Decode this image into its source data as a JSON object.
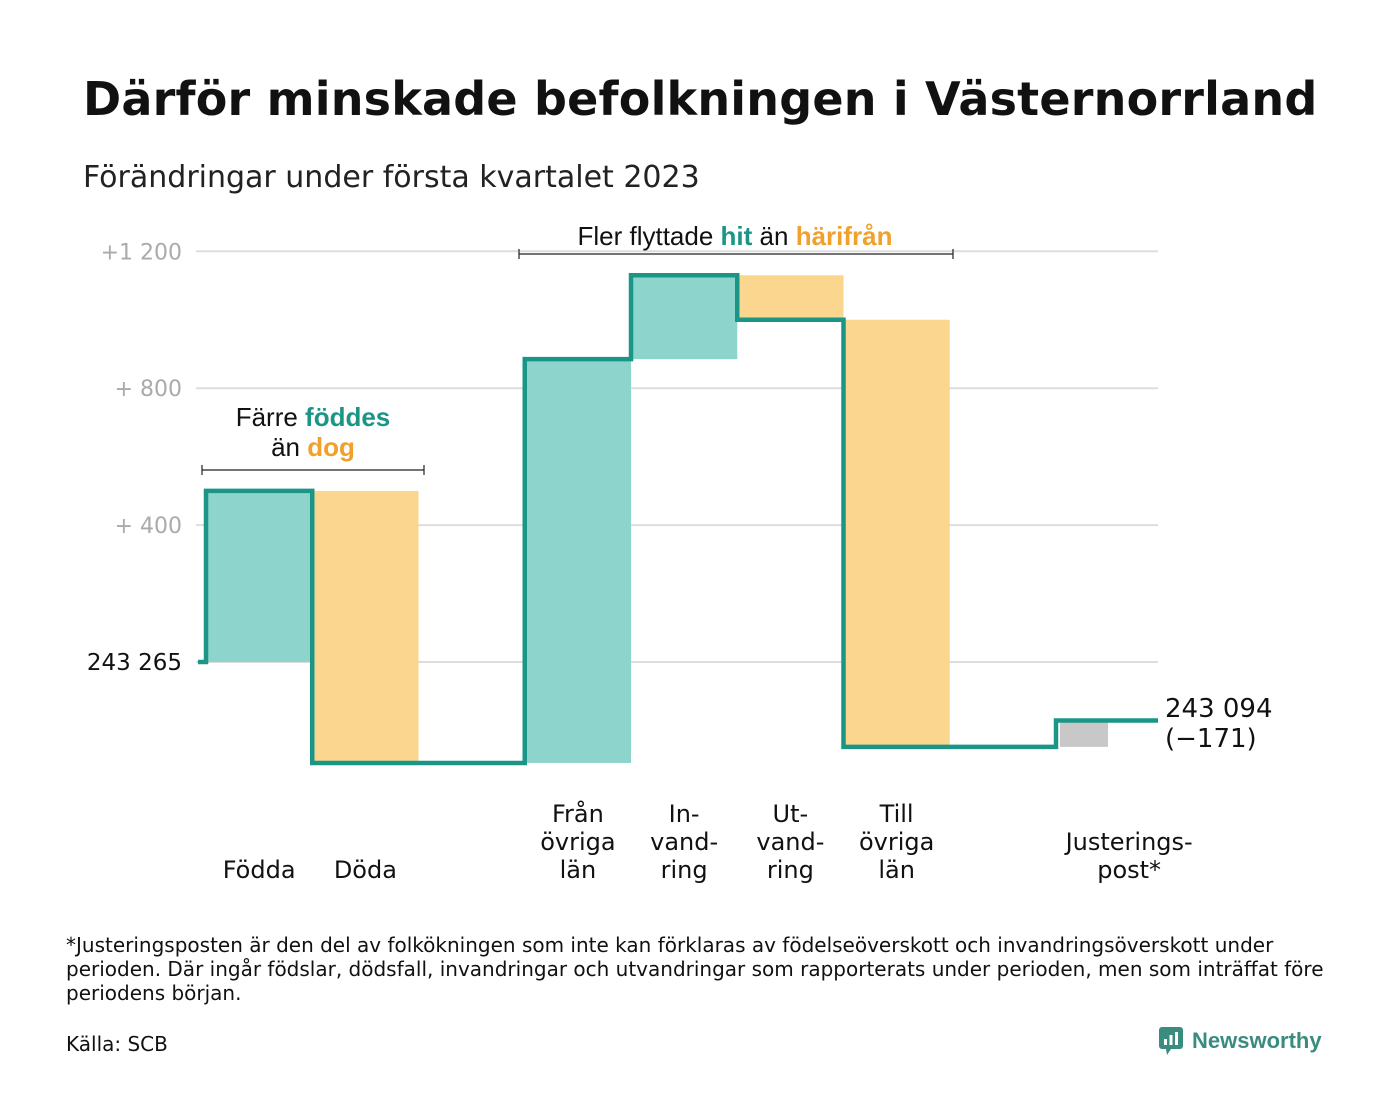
{
  "title": "Därför minskade befolkningen i Västernorrland",
  "subtitle": "Förändringar under första kvartalet 2023",
  "footnote": "*Justeringsposten är den del av folkökningen som inte kan förklaras av födelseöverskott och invandringsöverskott under perioden. Där ingår födslar, dödsfall, invandringar och utvandringar som rapporterats under perioden, men som inträffat före periodens början.",
  "source": "Källa: SCB",
  "brand": "Newsworthy",
  "colors": {
    "inflow": "#8dd5cc",
    "outflow": "#fad68e",
    "adjustment": "#c8c8c8",
    "line": "#1b9585",
    "grid": "#dddddd",
    "tick": "#aaaaaa",
    "accent_teal": "#1b9585",
    "accent_orange": "#f0a12b"
  },
  "chart_data": {
    "type": "waterfall",
    "baseline_label": "243 265",
    "ylim": [
      -300,
      1200
    ],
    "y_ticks": [
      {
        "value": 400,
        "label": "+ 400"
      },
      {
        "value": 800,
        "label": "+ 800"
      },
      {
        "value": 1200,
        "label": "+1 200"
      }
    ],
    "steps": [
      {
        "label": [
          "Födda"
        ],
        "start": 0,
        "end": 500,
        "kind": "inflow"
      },
      {
        "label": [
          "Döda"
        ],
        "start": 500,
        "end": -295,
        "kind": "outflow"
      },
      {
        "label": [],
        "start": -295,
        "end": -295,
        "kind": "gap"
      },
      {
        "label": [
          "Från",
          "övriga",
          "län"
        ],
        "start": -295,
        "end": 885,
        "kind": "inflow"
      },
      {
        "label": [
          "In-",
          "vand-",
          "ring"
        ],
        "start": 885,
        "end": 1130,
        "kind": "inflow"
      },
      {
        "label": [
          "Ut-",
          "vand-",
          "ring"
        ],
        "start": 1130,
        "end": 1000,
        "kind": "outflow"
      },
      {
        "label": [
          "Till",
          "övriga",
          "län"
        ],
        "start": 1000,
        "end": -248,
        "kind": "outflow"
      },
      {
        "label": [],
        "start": -248,
        "end": -248,
        "kind": "gap"
      },
      {
        "label": [
          "Justerings-",
          "post*"
        ],
        "start": -248,
        "end": -171,
        "kind": "adjustment"
      }
    ],
    "end_label": [
      "243 094",
      "(−171)"
    ],
    "annotations": [
      {
        "parts": [
          {
            "text": "Färre ",
            "style": "plain"
          },
          {
            "text": "föddes",
            "style": "teal"
          }
        ],
        "line2": [
          {
            "text": "än ",
            "style": "plain"
          },
          {
            "text": "dog",
            "style": "orange"
          }
        ]
      },
      {
        "parts": [
          {
            "text": "Fler flyttade ",
            "style": "plain"
          },
          {
            "text": "hit",
            "style": "teal"
          },
          {
            "text": " än ",
            "style": "plain"
          },
          {
            "text": "härifrån",
            "style": "orange"
          }
        ]
      }
    ]
  }
}
